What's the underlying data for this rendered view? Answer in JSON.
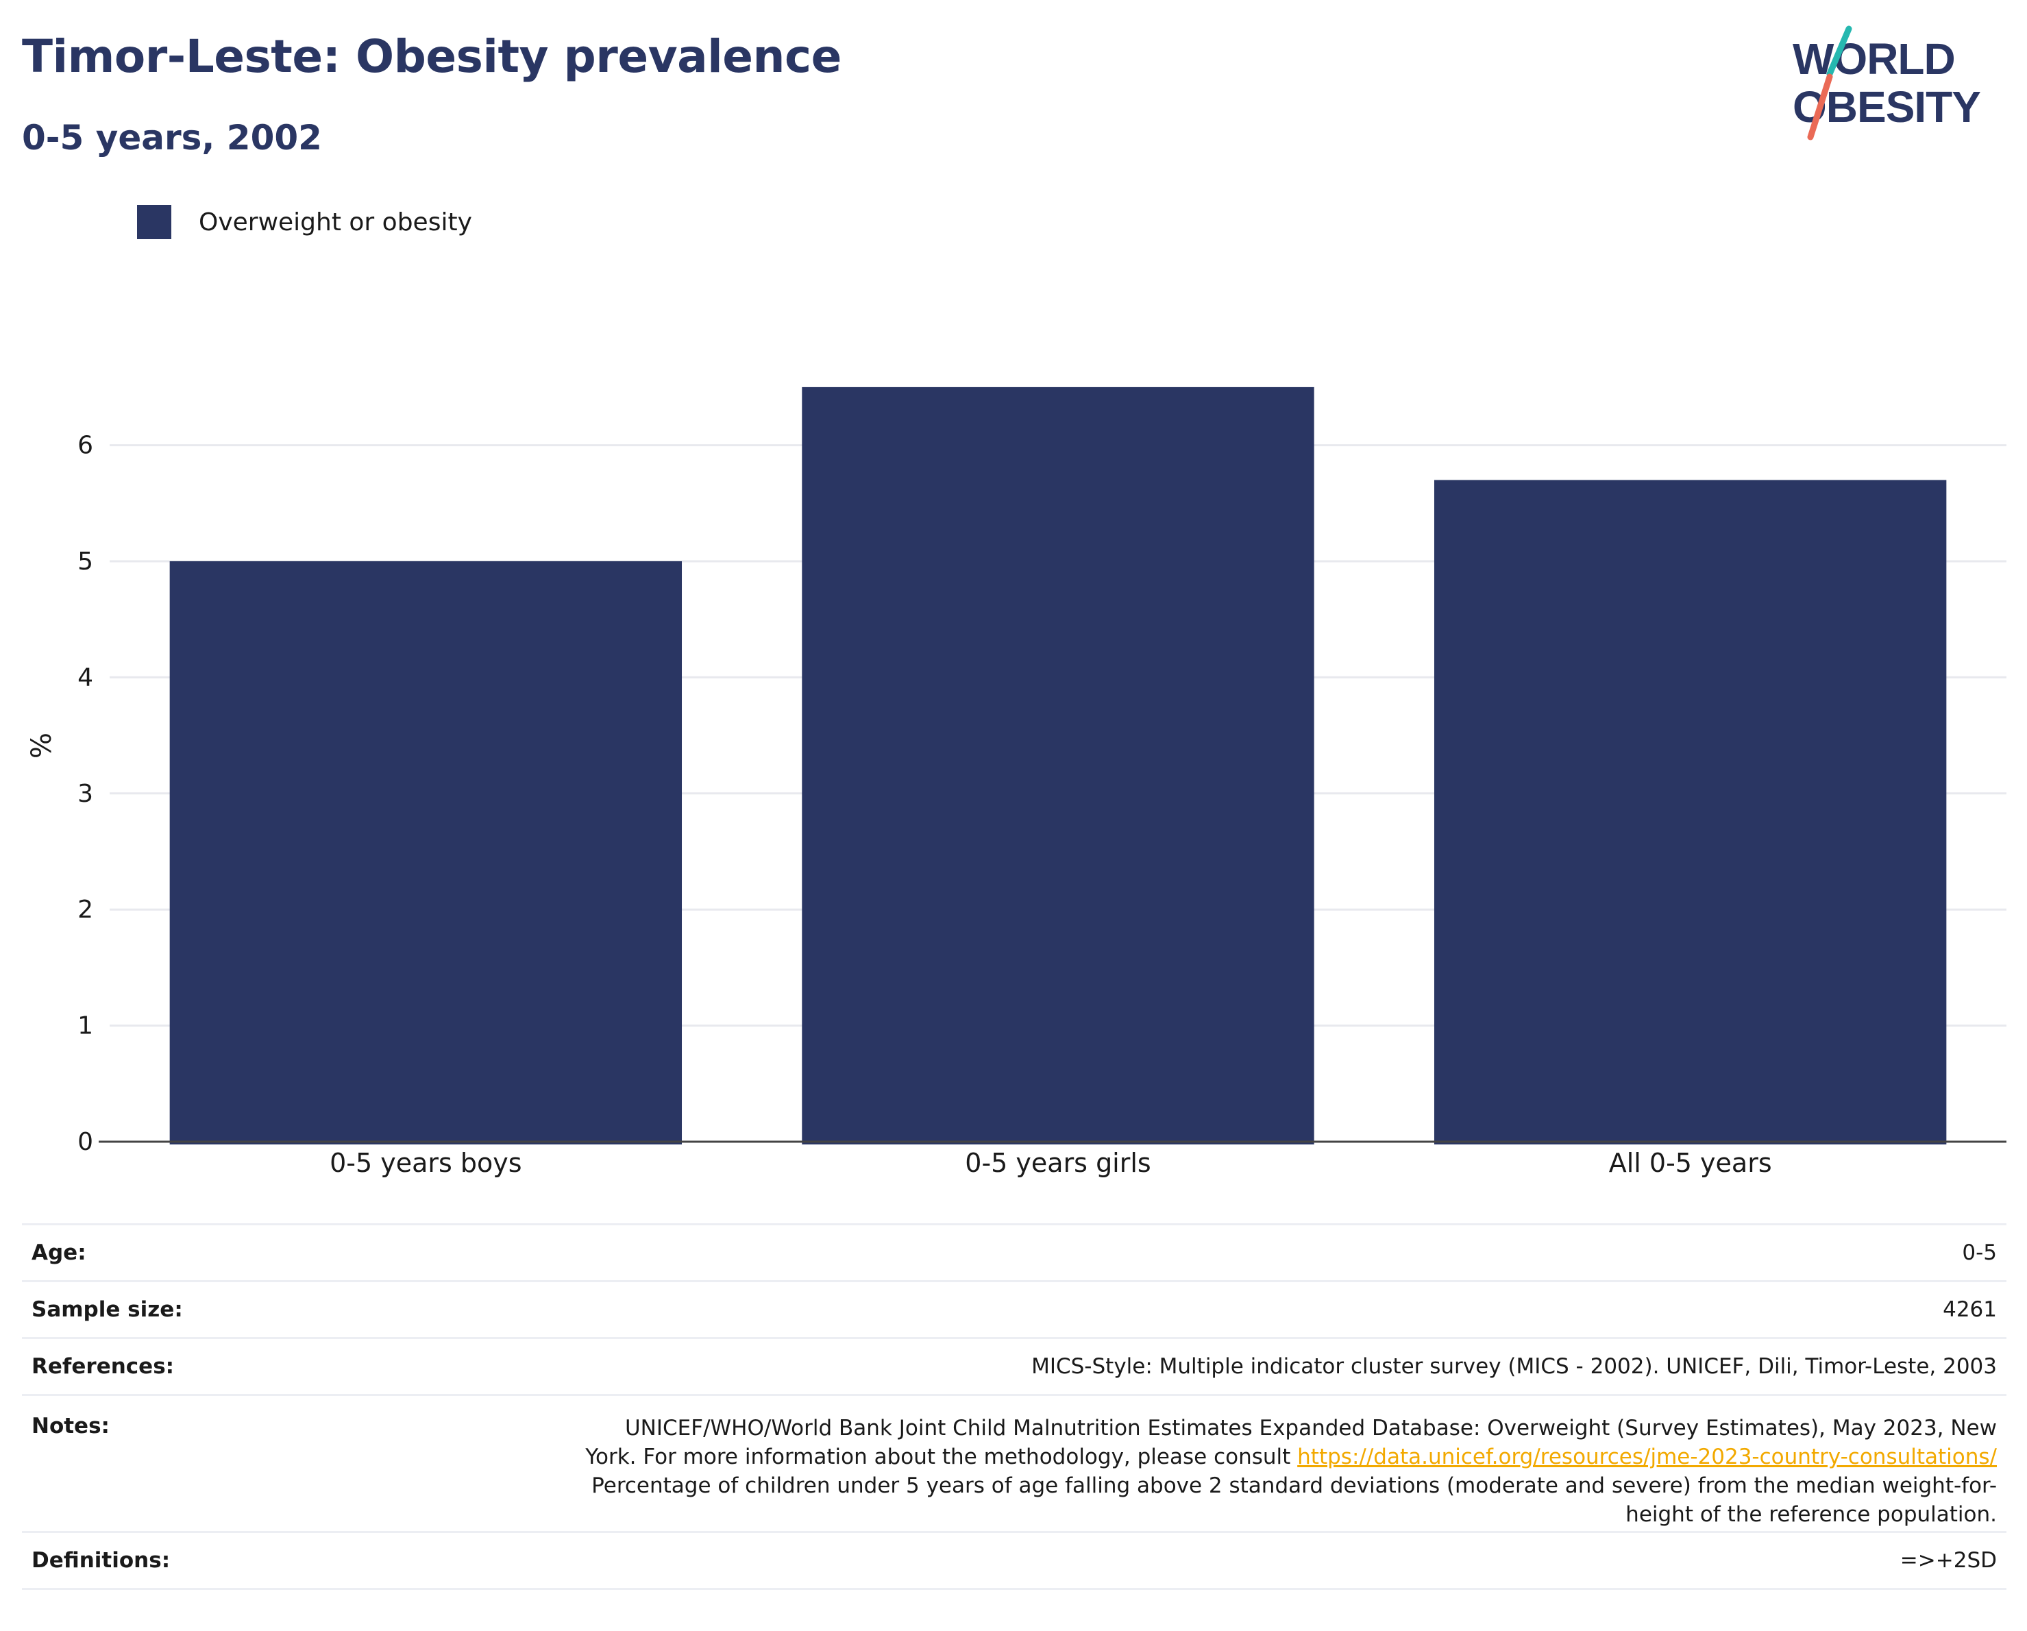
{
  "header": {
    "title": "Timor-Leste: Obesity prevalence",
    "subtitle": "0-5 years, 2002"
  },
  "logo": {
    "line1": "WORLD",
    "line2": "OBESITY",
    "accent_teal": "#26b8b0",
    "accent_coral": "#ea6a56"
  },
  "colors": {
    "bar": "#2a3663",
    "text_dark": "#2a3663",
    "link": "#f2a900"
  },
  "legend": {
    "label": "Overweight or obesity"
  },
  "chart_data": {
    "type": "bar",
    "categories": [
      "0-5 years boys",
      "0-5 years girls",
      "All 0-5 years"
    ],
    "series": [
      {
        "name": "Overweight or obesity",
        "values": [
          5.0,
          6.5,
          5.7
        ]
      }
    ],
    "ylabel": "%",
    "yticks": [
      "0",
      "1",
      "2",
      "3",
      "4",
      "5",
      "6"
    ],
    "ylim": [
      0,
      6.9
    ],
    "grid": true,
    "legend_position": "top-left"
  },
  "meta": {
    "age": {
      "label": "Age:",
      "value": "0-5"
    },
    "sample_size": {
      "label": "Sample size:",
      "value": "4261"
    },
    "references": {
      "label": "References:",
      "value": "MICS-Style: Multiple indicator cluster survey (MICS - 2002). UNICEF, Dili, Timor-Leste, 2003"
    },
    "notes": {
      "label": "Notes:",
      "text_before_link": "UNICEF/WHO/World Bank Joint Child Malnutrition Estimates Expanded Database: Overweight (Survey Estimates), May 2023, New York. For more information about the methodology, please consult",
      "link": "https://data.unicef.org/resources/jme-2023-country-consultations/",
      "text_after_link": "Percentage of children under 5 years of age falling above 2 standard deviations (moderate and severe) from the median weight-for-height of the reference population."
    },
    "definitions": {
      "label": "Definitions:",
      "value": "=>+2SD"
    }
  }
}
